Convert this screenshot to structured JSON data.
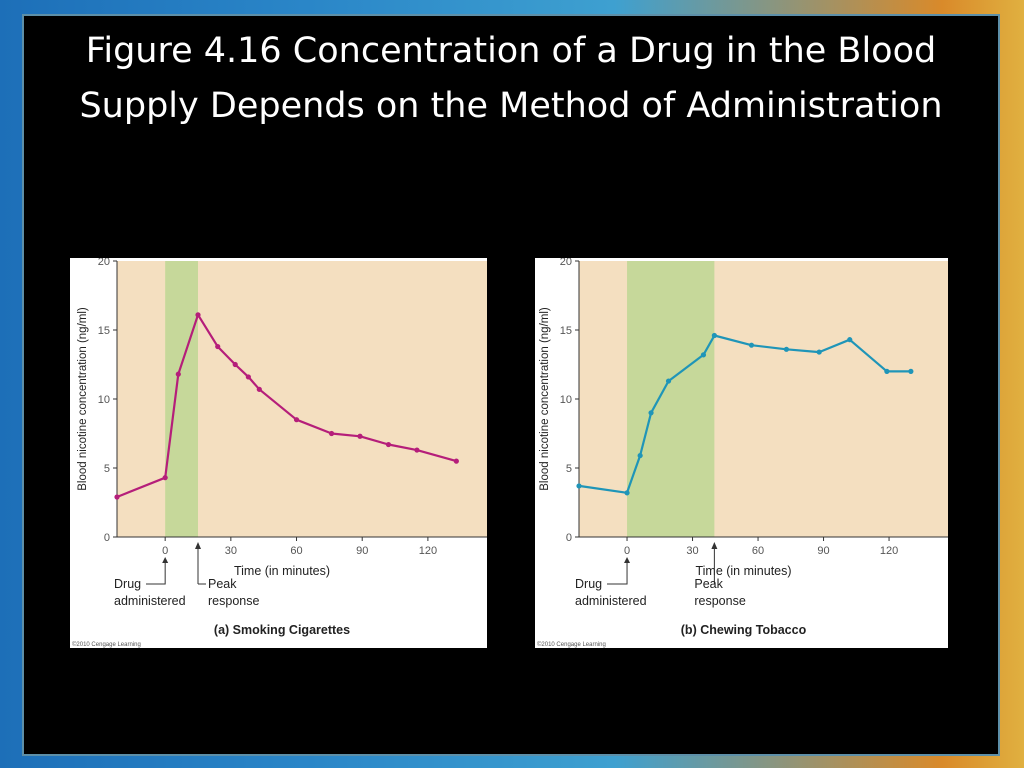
{
  "slide": {
    "title": "Figure 4.16 Concentration of a Drug in the Blood Supply Depends on the Method of Administration"
  },
  "colors": {
    "plot_background": "#f4dfc0",
    "response_band": "#c6d89a",
    "smoking_series": "#b51e7a",
    "chewing_series": "#1f95b8",
    "slide_background": "#000000"
  },
  "chart_data": [
    {
      "type": "line",
      "caption": "(a) Smoking Cigarettes",
      "copyright": "©2010 Cengage Learning",
      "xlabel": "Time (in minutes)",
      "ylabel": "Blood nicotine concentration (ng/ml)",
      "xlim": [
        -22,
        147
      ],
      "ylim": [
        0,
        20
      ],
      "xticks": [
        0,
        30,
        60,
        90,
        120
      ],
      "yticks": [
        0,
        5,
        10,
        15,
        20
      ],
      "shaded_region": [
        0,
        15
      ],
      "annotations": {
        "drug": [
          "Drug",
          "administered"
        ],
        "peak": [
          "Peak",
          "response"
        ]
      },
      "series": [
        {
          "x": [
            -22,
            0,
            6,
            15,
            24,
            32,
            38,
            43,
            60,
            76,
            89,
            102,
            115,
            133
          ],
          "y": [
            2.9,
            4.3,
            11.8,
            16.1,
            13.8,
            12.5,
            11.6,
            10.7,
            8.5,
            7.5,
            7.3,
            6.7,
            6.3,
            5.5
          ]
        }
      ]
    },
    {
      "type": "line",
      "caption": "(b) Chewing Tobacco",
      "copyright": "©2010 Cengage Learning",
      "xlabel": "Time (in minutes)",
      "ylabel": "Blood nicotine concentration (ng/ml)",
      "xlim": [
        -22,
        147
      ],
      "ylim": [
        0,
        20
      ],
      "xticks": [
        0,
        30,
        60,
        90,
        120
      ],
      "yticks": [
        0,
        5,
        10,
        15,
        20
      ],
      "shaded_region": [
        0,
        40
      ],
      "annotations": {
        "drug": [
          "Drug",
          "administered"
        ],
        "peak": [
          "Peak",
          "response"
        ]
      },
      "series": [
        {
          "x": [
            -22,
            0,
            6,
            11,
            19,
            35,
            40,
            57,
            73,
            88,
            102,
            119,
            130
          ],
          "y": [
            3.7,
            3.2,
            5.9,
            9.0,
            11.3,
            13.2,
            14.6,
            13.9,
            13.6,
            13.4,
            14.3,
            12.0,
            12.0
          ]
        }
      ]
    }
  ]
}
